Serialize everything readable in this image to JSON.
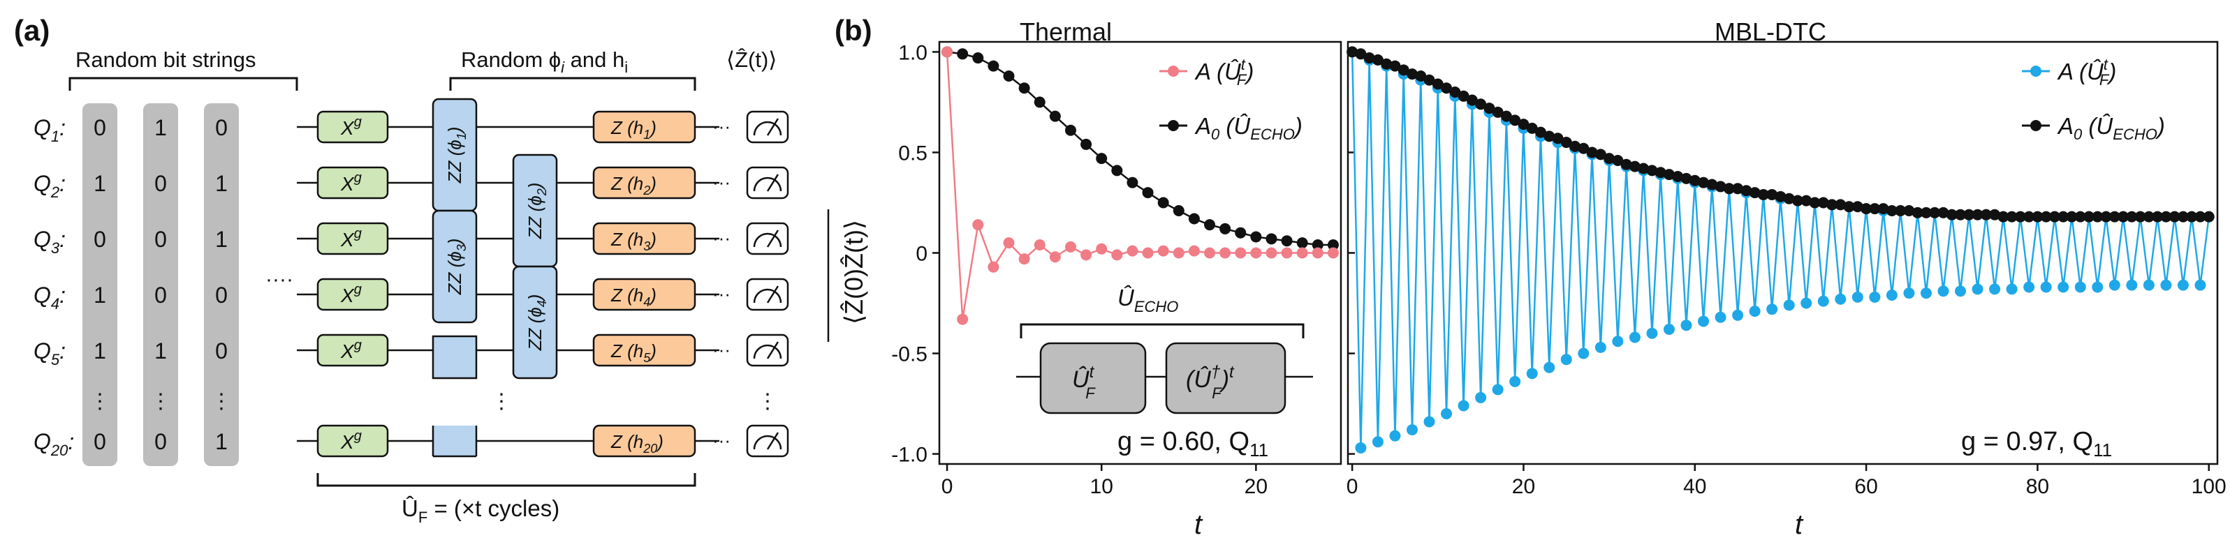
{
  "panel_a": {
    "panel_label": "(a)",
    "bit_strings_label": "Random bit strings",
    "random_params_label": "Random ϕ",
    "random_params_sub_i": "i",
    "random_params_and": " and h",
    "random_params_sub_i2": "i",
    "expectation_label": "⟨Ẑ(t)⟩",
    "qubit_labels": [
      "Q",
      "Q",
      "Q",
      "Q",
      "Q",
      "Q"
    ],
    "qubit_subs": [
      "1",
      "2",
      "3",
      "4",
      "5",
      "20"
    ],
    "bit_columns": [
      [
        "0",
        "1",
        "0",
        "1",
        "1",
        "0"
      ],
      [
        "1",
        "0",
        "0",
        "0",
        "1",
        "0"
      ],
      [
        "0",
        "1",
        "1",
        "0",
        "0",
        "1"
      ]
    ],
    "vdots": "⋮",
    "hdots": "····",
    "line_dots": "···",
    "xgate_label": "X",
    "xgate_sup": "g",
    "zz_label": "ZZ (ϕ",
    "zz_subs": [
      "1",
      "2",
      "3",
      "4"
    ],
    "z_label": "Z (h",
    "z_subs": [
      "1",
      "2",
      "3",
      "4",
      "5",
      "20"
    ],
    "uf_label": "Û",
    "uf_sub": "F",
    "uf_text": " = (×t cycles)",
    "meter_icon": "meter-icon"
  },
  "panel_b": {
    "panel_label": "(b)",
    "y_axis_label": "⟨Ẑ(0)Ẑ(t)⟩",
    "colors": {
      "pink": "#f07c86",
      "black": "#111111",
      "blue": "#1fa8e8",
      "gate_green": "#cfe6b8",
      "gate_blue": "#b8d4ee",
      "gate_orange": "#fcc99a",
      "bit_gray": "#bdbdbd",
      "echo_gray": "#bdbdbd"
    },
    "inset": {
      "echo_label": "Û",
      "echo_sub": "ECHO",
      "box1_main": "Û",
      "box1_sup": "t",
      "box1_sub": "F",
      "box2_main": "(Û",
      "box2_sup": "†",
      "box2_sub": "F",
      "box2_end": ")",
      "box2_end_sup": "t"
    }
  },
  "chart_data": [
    {
      "type": "line",
      "title": "Thermal",
      "xlabel": "t",
      "ylabel": "⟨Ẑ(0)Ẑ(t)⟩",
      "xlim": [
        -0.5,
        25.5
      ],
      "ylim": [
        -1.05,
        1.05
      ],
      "x_ticks": [
        "0",
        "10",
        "20"
      ],
      "y_ticks": [
        "1.0",
        "0.5",
        "0",
        "-0.5",
        "-1.0"
      ],
      "annotation": "g = 0.60,  Q",
      "annotation_sub": "11",
      "legend": [
        {
          "name": "A (Û",
          "sup": "t",
          "sub": "F",
          "end": ")"
        },
        {
          "name": "A",
          "sub0": "0",
          "mid": " (Û",
          "sub": "ECHO",
          "end": ")"
        }
      ],
      "series": [
        {
          "name": "A(U_F^t)",
          "color": "#f07c86",
          "x": [
            0,
            1,
            2,
            3,
            4,
            5,
            6,
            7,
            8,
            9,
            10,
            11,
            12,
            13,
            14,
            15,
            16,
            17,
            18,
            19,
            20,
            21,
            22,
            23,
            24,
            25
          ],
          "values": [
            1.0,
            -0.33,
            0.14,
            -0.07,
            0.05,
            -0.03,
            0.04,
            -0.02,
            0.03,
            -0.01,
            0.02,
            -0.01,
            0.01,
            0.0,
            0.01,
            0.0,
            0.01,
            0.0,
            0.0,
            0.0,
            0.0,
            0.0,
            0.0,
            0.0,
            0.0,
            0.0
          ]
        },
        {
          "name": "A0(U_ECHO)",
          "color": "#111111",
          "x": [
            0,
            1,
            2,
            3,
            4,
            5,
            6,
            7,
            8,
            9,
            10,
            11,
            12,
            13,
            14,
            15,
            16,
            17,
            18,
            19,
            20,
            21,
            22,
            23,
            24,
            25
          ],
          "values": [
            1.0,
            0.99,
            0.97,
            0.93,
            0.88,
            0.82,
            0.75,
            0.68,
            0.61,
            0.54,
            0.47,
            0.41,
            0.35,
            0.3,
            0.25,
            0.21,
            0.17,
            0.14,
            0.12,
            0.1,
            0.08,
            0.07,
            0.06,
            0.05,
            0.04,
            0.04
          ]
        }
      ]
    },
    {
      "type": "line",
      "title": "MBL-DTC",
      "xlabel": "t",
      "xlim": [
        -0.5,
        101
      ],
      "ylim": [
        -1.05,
        1.05
      ],
      "x_ticks": [
        "0",
        "20",
        "40",
        "60",
        "80",
        "100"
      ],
      "annotation": "g = 0.97,  Q",
      "annotation_sub": "11",
      "legend": [
        {
          "name": "A (Û",
          "sup": "t",
          "sub": "F",
          "end": ")"
        },
        {
          "name": "A",
          "sub0": "0",
          "mid": " (Û",
          "sub": "ECHO",
          "end": ")"
        }
      ],
      "decay_model": {
        "description": "echo envelope and period-doubled oscillation",
        "echo_start": 1.0,
        "echo_end_at_100": 0.18,
        "odd_start": -0.97,
        "odd_end_at_100": -0.16
      },
      "series": [
        {
          "name": "A(U_F^t)",
          "color": "#1fa8e8",
          "x_range": [
            0,
            100
          ],
          "values": [
            1.0,
            -0.97,
            0.96,
            -0.94,
            0.93,
            -0.91,
            0.89,
            -0.88,
            0.86,
            -0.84,
            0.82,
            -0.8,
            0.78,
            -0.76,
            0.74,
            -0.72,
            0.7,
            -0.68,
            0.66,
            -0.64,
            0.62,
            -0.6,
            0.58,
            -0.57,
            0.55,
            -0.53,
            0.52,
            -0.5,
            0.49,
            -0.47,
            0.46,
            -0.44,
            0.43,
            -0.42,
            0.41,
            -0.4,
            0.39,
            -0.38,
            0.37,
            -0.36,
            0.35,
            -0.34,
            0.33,
            -0.32,
            0.32,
            -0.31,
            0.3,
            -0.29,
            0.29,
            -0.28,
            0.27,
            -0.26,
            0.26,
            -0.25,
            0.25,
            -0.24,
            0.24,
            -0.23,
            0.23,
            -0.22,
            0.22,
            -0.22,
            0.21,
            -0.21,
            0.21,
            -0.2,
            0.2,
            -0.2,
            0.2,
            -0.19,
            0.19,
            -0.19,
            0.19,
            -0.18,
            0.19,
            -0.18,
            0.18,
            -0.18,
            0.18,
            -0.17,
            0.18,
            -0.17,
            0.18,
            -0.17,
            0.18,
            -0.17,
            0.18,
            -0.17,
            0.18,
            -0.16,
            0.18,
            -0.16,
            0.18,
            -0.16,
            0.18,
            -0.16,
            0.18,
            -0.16,
            0.18,
            -0.16,
            0.18
          ]
        },
        {
          "name": "A0(U_ECHO)",
          "color": "#111111",
          "x_range": [
            0,
            100
          ],
          "values": [
            1.0,
            0.99,
            0.97,
            0.96,
            0.94,
            0.93,
            0.91,
            0.89,
            0.88,
            0.86,
            0.84,
            0.82,
            0.8,
            0.78,
            0.76,
            0.74,
            0.72,
            0.7,
            0.68,
            0.66,
            0.64,
            0.62,
            0.6,
            0.58,
            0.57,
            0.55,
            0.53,
            0.52,
            0.5,
            0.49,
            0.47,
            0.46,
            0.44,
            0.43,
            0.42,
            0.41,
            0.4,
            0.39,
            0.38,
            0.37,
            0.36,
            0.35,
            0.34,
            0.33,
            0.32,
            0.32,
            0.31,
            0.3,
            0.29,
            0.29,
            0.28,
            0.27,
            0.26,
            0.26,
            0.25,
            0.25,
            0.24,
            0.24,
            0.23,
            0.23,
            0.22,
            0.22,
            0.22,
            0.21,
            0.21,
            0.21,
            0.2,
            0.2,
            0.2,
            0.2,
            0.19,
            0.19,
            0.19,
            0.19,
            0.19,
            0.19,
            0.18,
            0.18,
            0.18,
            0.18,
            0.18,
            0.18,
            0.18,
            0.18,
            0.18,
            0.18,
            0.18,
            0.18,
            0.18,
            0.18,
            0.18,
            0.18,
            0.18,
            0.18,
            0.18,
            0.18,
            0.18,
            0.18,
            0.18,
            0.18,
            0.18
          ]
        }
      ]
    }
  ]
}
